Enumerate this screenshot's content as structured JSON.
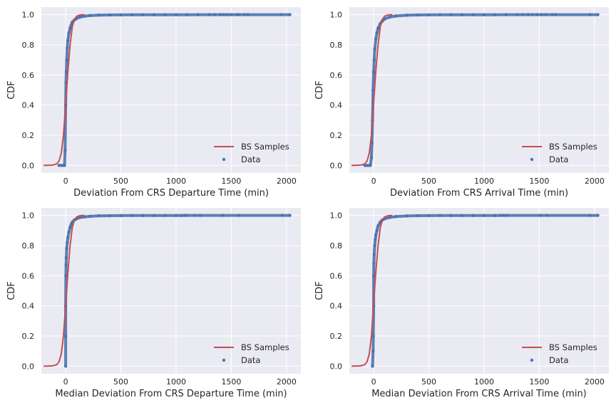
{
  "colors": {
    "axes_bg": "#eaeaf2",
    "grid": "#ffffff",
    "bs_samples": "#c44e52",
    "data_points": "#4c72b0"
  },
  "chart_data": [
    {
      "type": "line",
      "xlabel": "Deviation From CRS Departure Time (min)",
      "ylabel": "CDF",
      "xlim": [
        -220,
        2130
      ],
      "ylim": [
        -0.05,
        1.05
      ],
      "xticks": [
        0,
        500,
        1000,
        1500,
        2000
      ],
      "yticks": [
        0.0,
        0.2,
        0.4,
        0.6,
        0.8,
        1.0
      ],
      "grid": true,
      "legend_position": "lower-right",
      "series": [
        {
          "name": "BS Samples",
          "kind": "line",
          "x": [
            -200,
            -120,
            -80,
            -60,
            -40,
            -20,
            0,
            20,
            40,
            60,
            80,
            100,
            130,
            170
          ],
          "y": [
            0.0,
            0.002,
            0.01,
            0.03,
            0.08,
            0.2,
            0.4,
            0.62,
            0.8,
            0.92,
            0.97,
            0.99,
            0.998,
            1.0
          ]
        },
        {
          "name": "Data",
          "kind": "scatter",
          "x": [
            -60,
            -30,
            -10,
            -5,
            0,
            3,
            6,
            10,
            15,
            20,
            30,
            40,
            50,
            60,
            80,
            100,
            130,
            170,
            220,
            300,
            400,
            500,
            600,
            700,
            800,
            900,
            1000,
            1100,
            1200,
            1300,
            1350,
            1400,
            1430,
            1460,
            1500,
            1550,
            1570,
            1620,
            1650,
            1950,
            2030
          ],
          "y": [
            0.0,
            0.0,
            0.0,
            0.1,
            0.4,
            0.55,
            0.62,
            0.7,
            0.78,
            0.83,
            0.88,
            0.91,
            0.93,
            0.95,
            0.965,
            0.975,
            0.984,
            0.99,
            0.994,
            0.997,
            0.998,
            0.9985,
            0.999,
            0.9992,
            0.9994,
            0.9995,
            0.9996,
            0.9997,
            0.9998,
            0.9998,
            0.9999,
            0.9999,
            0.9999,
            0.9999,
            1.0,
            1.0,
            1.0,
            1.0,
            1.0,
            1.0,
            1.0
          ]
        }
      ]
    },
    {
      "type": "line",
      "xlabel": "Deviation From CRS Arrival Time (min)",
      "ylabel": "CDF",
      "xlim": [
        -220,
        2130
      ],
      "ylim": [
        -0.05,
        1.05
      ],
      "xticks": [
        0,
        500,
        1000,
        1500,
        2000
      ],
      "yticks": [
        0.0,
        0.2,
        0.4,
        0.6,
        0.8,
        1.0
      ],
      "grid": true,
      "legend_position": "lower-right",
      "series": [
        {
          "name": "BS Samples",
          "kind": "line",
          "x": [
            -200,
            -120,
            -80,
            -60,
            -40,
            -20,
            0,
            20,
            40,
            60,
            80,
            100,
            130,
            170
          ],
          "y": [
            0.0,
            0.002,
            0.01,
            0.03,
            0.08,
            0.2,
            0.42,
            0.63,
            0.8,
            0.92,
            0.97,
            0.99,
            0.998,
            1.0
          ]
        },
        {
          "name": "Data",
          "kind": "scatter",
          "x": [
            -80,
            -60,
            -40,
            -30,
            -20,
            -15,
            -10,
            -5,
            0,
            5,
            10,
            20,
            30,
            40,
            60,
            80,
            100,
            150,
            200,
            300,
            400,
            500,
            600,
            700,
            800,
            900,
            1000,
            1100,
            1200,
            1300,
            1350,
            1400,
            1440,
            1480,
            1520,
            1560,
            1620,
            1650,
            1960,
            2030
          ],
          "y": [
            0.0,
            0.0,
            0.0,
            0.0,
            0.05,
            0.15,
            0.3,
            0.5,
            0.62,
            0.7,
            0.77,
            0.84,
            0.88,
            0.91,
            0.94,
            0.96,
            0.972,
            0.985,
            0.991,
            0.996,
            0.998,
            0.9985,
            0.999,
            0.9992,
            0.9994,
            0.9995,
            0.9996,
            0.9997,
            0.9998,
            0.9998,
            0.9999,
            0.9999,
            0.9999,
            0.9999,
            1.0,
            1.0,
            1.0,
            1.0,
            1.0,
            1.0
          ]
        }
      ]
    },
    {
      "type": "line",
      "xlabel": "Median Deviation From CRS Departure Time (min)",
      "ylabel": "CDF",
      "xlim": [
        -220,
        2130
      ],
      "ylim": [
        -0.05,
        1.05
      ],
      "xticks": [
        0,
        500,
        1000,
        1500,
        2000
      ],
      "yticks": [
        0.0,
        0.2,
        0.4,
        0.6,
        0.8,
        1.0
      ],
      "grid": true,
      "legend_position": "lower-right",
      "series": [
        {
          "name": "BS Samples",
          "kind": "line",
          "x": [
            -200,
            -120,
            -80,
            -60,
            -40,
            -20,
            0,
            20,
            40,
            60,
            80,
            100,
            130,
            170
          ],
          "y": [
            0.0,
            0.002,
            0.01,
            0.03,
            0.08,
            0.2,
            0.4,
            0.62,
            0.8,
            0.92,
            0.97,
            0.99,
            0.998,
            1.0
          ]
        },
        {
          "name": "Data",
          "kind": "scatter",
          "x": [
            0,
            0,
            0,
            2,
            4,
            6,
            10,
            15,
            20,
            30,
            40,
            50,
            60,
            80,
            100,
            130,
            170,
            220,
            300,
            400,
            500,
            600,
            700,
            800,
            900,
            1000,
            1050,
            1080,
            1100,
            1170,
            1220,
            1420,
            1570,
            1960,
            2030
          ],
          "y": [
            0.0,
            0.2,
            0.4,
            0.6,
            0.67,
            0.72,
            0.78,
            0.82,
            0.85,
            0.89,
            0.92,
            0.94,
            0.955,
            0.97,
            0.978,
            0.986,
            0.99,
            0.994,
            0.997,
            0.998,
            0.9985,
            0.999,
            0.9992,
            0.9994,
            0.9995,
            0.9996,
            0.9997,
            0.9998,
            0.9999,
            1.0,
            1.0,
            1.0,
            1.0,
            1.0,
            1.0
          ]
        }
      ]
    },
    {
      "type": "line",
      "xlabel": "Median Deviation From CRS Arrival Time (min)",
      "ylabel": "CDF",
      "xlim": [
        -220,
        2130
      ],
      "ylim": [
        -0.05,
        1.05
      ],
      "xticks": [
        0,
        500,
        1000,
        1500,
        2000
      ],
      "yticks": [
        0.0,
        0.2,
        0.4,
        0.6,
        0.8,
        1.0
      ],
      "grid": true,
      "legend_position": "lower-right",
      "series": [
        {
          "name": "BS Samples",
          "kind": "line",
          "x": [
            -200,
            -120,
            -80,
            -60,
            -40,
            -20,
            0,
            20,
            40,
            60,
            80,
            100,
            130,
            170
          ],
          "y": [
            0.0,
            0.002,
            0.01,
            0.03,
            0.08,
            0.2,
            0.42,
            0.63,
            0.8,
            0.92,
            0.97,
            0.99,
            0.998,
            1.0
          ]
        },
        {
          "name": "Data",
          "kind": "scatter",
          "x": [
            -10,
            -5,
            -3,
            0,
            0,
            2,
            5,
            10,
            15,
            20,
            30,
            40,
            60,
            80,
            100,
            150,
            200,
            300,
            400,
            500,
            600,
            700,
            800,
            900,
            1000,
            1100,
            1150,
            1180,
            1210,
            1510,
            1570,
            1960,
            2030
          ],
          "y": [
            0.0,
            0.1,
            0.2,
            0.4,
            0.6,
            0.68,
            0.74,
            0.8,
            0.84,
            0.87,
            0.9,
            0.93,
            0.955,
            0.97,
            0.978,
            0.987,
            0.992,
            0.996,
            0.998,
            0.9985,
            0.999,
            0.9992,
            0.9994,
            0.9995,
            0.9996,
            0.9997,
            0.9998,
            0.9999,
            1.0,
            1.0,
            1.0,
            1.0,
            1.0
          ]
        }
      ]
    }
  ]
}
